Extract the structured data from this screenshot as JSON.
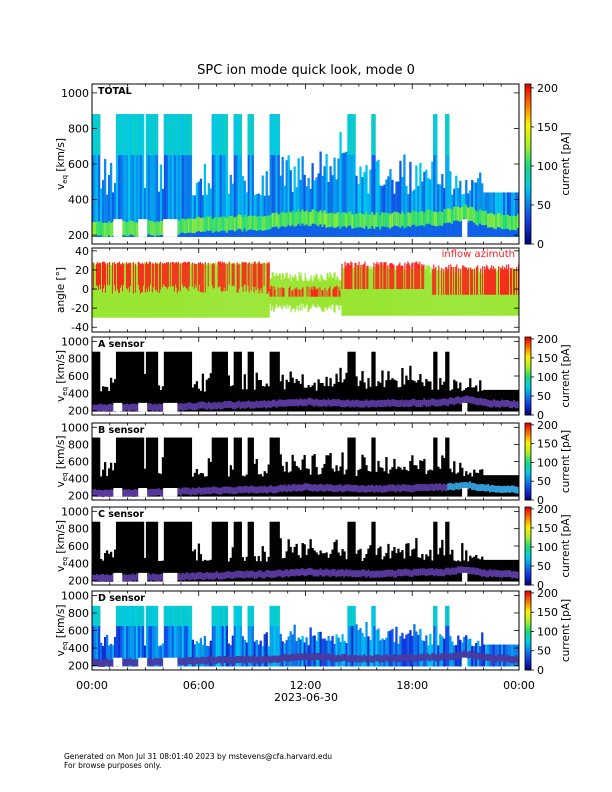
{
  "chart_data": {
    "type": "heatmap",
    "title": "SPC ion mode quick look, mode 0",
    "x_axis": {
      "label": "2023-06-30",
      "ticks": [
        "00:00",
        "06:00",
        "12:00",
        "18:00",
        "00:00"
      ],
      "range_hours": [
        0,
        24
      ]
    },
    "panels": [
      {
        "name": "TOTAL",
        "kind": "spectrogram",
        "ylabel_main": "v",
        "ylabel_sub": "eq",
        "ylabel_unit": "[km/s]",
        "yticks": [
          200,
          400,
          600,
          800,
          1000
        ],
        "ylim": [
          150,
          1050
        ],
        "colormap": "rainbow",
        "colorbar": {
          "label": "current [pA]",
          "ticks": [
            0,
            50,
            100,
            150,
            200
          ],
          "range": [
            0,
            205
          ]
        },
        "core_speed_kms": [
          [
            0,
            230
          ],
          [
            2,
            235
          ],
          [
            4,
            240
          ],
          [
            6,
            255
          ],
          [
            8,
            265
          ],
          [
            10,
            275
          ],
          [
            12,
            300
          ],
          [
            14,
            285
          ],
          [
            16,
            280
          ],
          [
            18,
            290
          ],
          [
            20,
            300
          ],
          [
            21,
            330
          ],
          [
            22,
            290
          ],
          [
            24,
            270
          ]
        ]
      },
      {
        "name": "inflow azimuth",
        "kind": "line",
        "ylabel_main": "angle [°]",
        "yticks": [
          -40,
          -20,
          0,
          20,
          40
        ],
        "ylim": [
          -45,
          43
        ],
        "series": [
          {
            "name": "inflow azimuth",
            "color": "#ff1a1a",
            "range_deg": [
              -10,
              30
            ]
          },
          {
            "color": "#99e633",
            "range_deg": [
              -30,
              28
            ]
          }
        ]
      },
      {
        "name": "A sensor",
        "kind": "spectrogram",
        "ylabel_main": "v",
        "ylabel_sub": "eq",
        "ylabel_unit": "[km/s]",
        "yticks": [
          200,
          400,
          600,
          800,
          1000
        ],
        "ylim": [
          150,
          1050
        ],
        "colormap": "dark",
        "colorbar": {
          "label": "current [pA]",
          "ticks": [
            0,
            50,
            100,
            150,
            200
          ],
          "range": [
            0,
            205
          ]
        }
      },
      {
        "name": "B sensor",
        "kind": "spectrogram",
        "ylabel_main": "v",
        "ylabel_sub": "eq",
        "ylabel_unit": "[km/s]",
        "yticks": [
          200,
          400,
          600,
          800,
          1000
        ],
        "ylim": [
          150,
          1050
        ],
        "colormap": "dark",
        "colorbar": {
          "label": "current [pA]",
          "ticks": [
            0,
            50,
            100,
            150,
            200
          ],
          "range": [
            0,
            205
          ]
        }
      },
      {
        "name": "C sensor",
        "kind": "spectrogram",
        "ylabel_main": "v",
        "ylabel_sub": "eq",
        "ylabel_unit": "[km/s]",
        "yticks": [
          200,
          400,
          600,
          800,
          1000
        ],
        "ylim": [
          150,
          1050
        ],
        "colormap": "dark",
        "colorbar": {
          "label": "current [pA]",
          "ticks": [
            0,
            50,
            100,
            150,
            200
          ],
          "range": [
            0,
            205
          ]
        }
      },
      {
        "name": "D sensor",
        "kind": "spectrogram",
        "ylabel_main": "v",
        "ylabel_sub": "eq",
        "ylabel_unit": "[km/s]",
        "yticks": [
          200,
          400,
          600,
          800,
          1000
        ],
        "ylim": [
          150,
          1050
        ],
        "colormap": "cyanish",
        "colorbar": {
          "label": "current [pA]",
          "ticks": [
            0,
            50,
            100,
            150,
            200
          ],
          "range": [
            0,
            205
          ]
        }
      }
    ]
  },
  "footer": {
    "line1": "Generated on Mon Jul 31 08:01:40 2023 by mstevens@cfa.harvard.edu",
    "line2": "For browse purposes only."
  }
}
